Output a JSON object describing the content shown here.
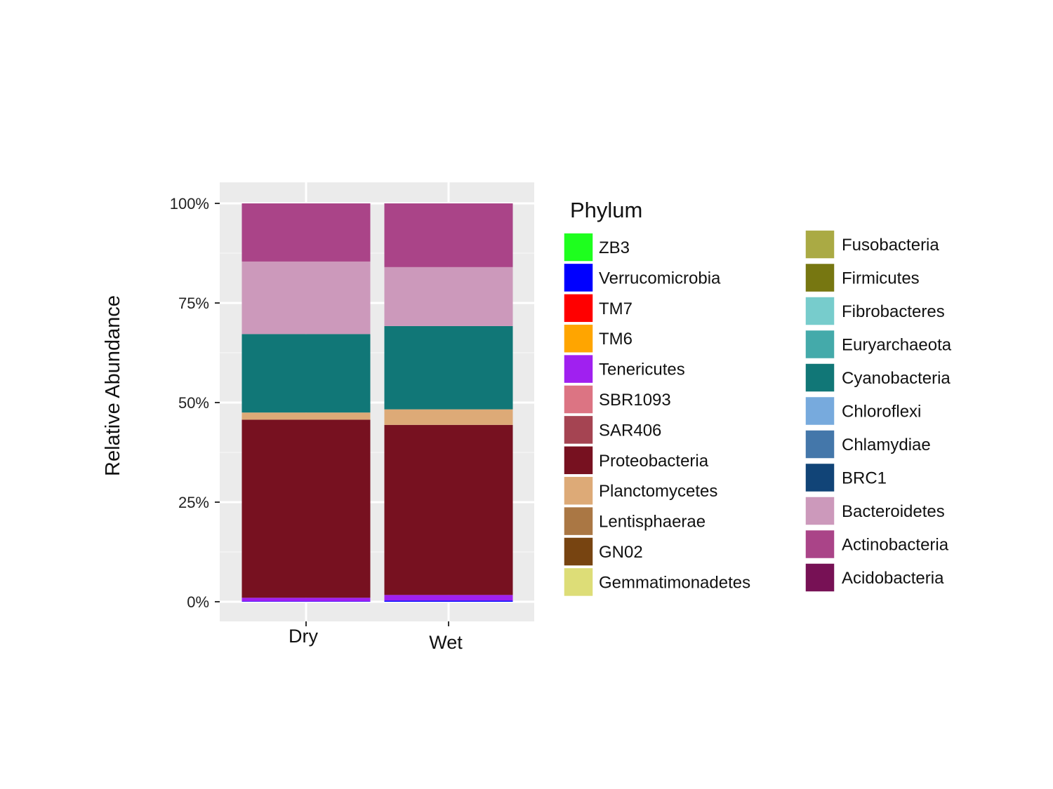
{
  "chart_data": {
    "type": "bar",
    "stacked": true,
    "categories": [
      "Dry",
      "Wet"
    ],
    "ylabel": "Relative Abundance",
    "ylim": [
      0,
      100
    ],
    "yticks": [
      {
        "value": 0,
        "label": "0%"
      },
      {
        "value": 25,
        "label": "25%"
      },
      {
        "value": 50,
        "label": "50%"
      },
      {
        "value": 75,
        "label": "75%"
      },
      {
        "value": 100,
        "label": "100%"
      }
    ],
    "grid": true,
    "legend": {
      "title": "Phylum",
      "placement": "right",
      "entries": [
        {
          "name": "ZB3",
          "color": "#1eff1e"
        },
        {
          "name": "Verrucomicrobia",
          "color": "#0000ff"
        },
        {
          "name": "TM7",
          "color": "#ff0000"
        },
        {
          "name": "TM6",
          "color": "#ffa500"
        },
        {
          "name": "Tenericutes",
          "color": "#a020f0"
        },
        {
          "name": "SBR1093",
          "color": "#dc7483"
        },
        {
          "name": "SAR406",
          "color": "#a54452"
        },
        {
          "name": "Proteobacteria",
          "color": "#771120"
        },
        {
          "name": "Planctomycetes",
          "color": "#ddaa77"
        },
        {
          "name": "Lentisphaerae",
          "color": "#aa7744"
        },
        {
          "name": "GN02",
          "color": "#774411"
        },
        {
          "name": "Gemmatimonadetes",
          "color": "#dddd77"
        },
        {
          "name": "Fusobacteria",
          "color": "#aaaa44"
        },
        {
          "name": "Firmicutes",
          "color": "#777711"
        },
        {
          "name": "Fibrobacteres",
          "color": "#77cccc"
        },
        {
          "name": "Euryarchaeota",
          "color": "#44aaaa"
        },
        {
          "name": "Cyanobacteria",
          "color": "#117777"
        },
        {
          "name": "Chloroflexi",
          "color": "#77aadd"
        },
        {
          "name": "Chlamydiae",
          "color": "#4477aa"
        },
        {
          "name": "BRC1",
          "color": "#114477"
        },
        {
          "name": "Bacteroidetes",
          "color": "#cc99bb"
        },
        {
          "name": "Actinobacteria",
          "color": "#aa4488"
        },
        {
          "name": "Acidobacteria",
          "color": "#771155"
        }
      ]
    },
    "series": [
      {
        "name": "Verrucomicrobia",
        "color": "#0000ff",
        "values": [
          0.1,
          0.3
        ]
      },
      {
        "name": "Tenericutes",
        "color": "#a020f0",
        "values": [
          0.9,
          1.4
        ]
      },
      {
        "name": "Proteobacteria",
        "color": "#771120",
        "values": [
          44.7,
          42.7
        ]
      },
      {
        "name": "Planctomycetes",
        "color": "#ddaa77",
        "values": [
          1.8,
          3.9
        ]
      },
      {
        "name": "Cyanobacteria",
        "color": "#117777",
        "values": [
          19.7,
          20.9
        ]
      },
      {
        "name": "Bacteroidetes",
        "color": "#cc99bb",
        "values": [
          18.2,
          14.8
        ]
      },
      {
        "name": "Actinobacteria",
        "color": "#aa4488",
        "values": [
          14.6,
          16.0
        ]
      }
    ]
  }
}
